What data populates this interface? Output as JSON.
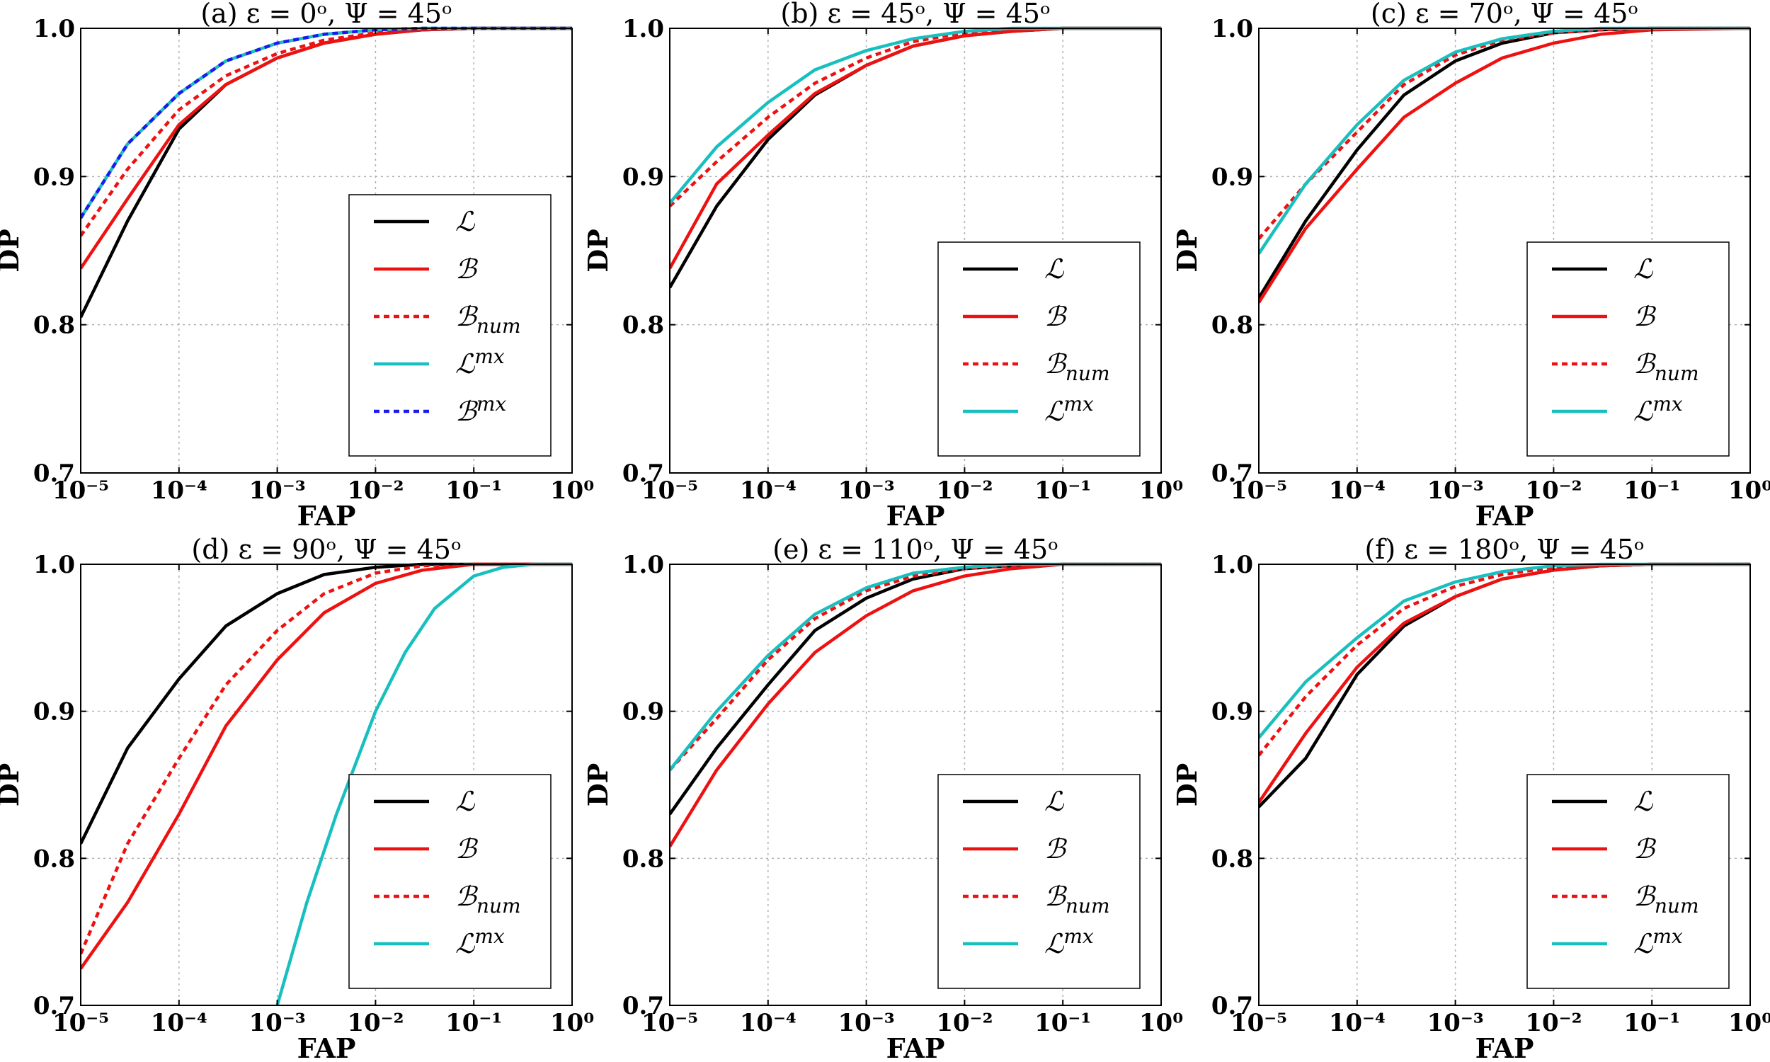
{
  "colors": {
    "L": "#000000",
    "B": "#ee1111",
    "B_num": "#ee1111",
    "L_mx": "#19bfbf",
    "B_mx": "#1a1aee"
  },
  "chart_data": [
    {
      "type": "line",
      "panel": "(a)",
      "title": "(a) ε = 0ᵒ, Ψ = 45ᵒ",
      "xlabel": "FAP",
      "ylabel": "DP",
      "xscale": "log",
      "xlim": [
        1e-05,
        1
      ],
      "ylim": [
        0.7,
        1.0
      ],
      "xticks": [
        "10⁻⁵",
        "10⁻⁴",
        "10⁻³",
        "10⁻²",
        "10⁻¹",
        "10⁰"
      ],
      "yticks": [
        "0.7",
        "0.8",
        "0.9",
        "1.0"
      ],
      "grid": true,
      "legend_position": "lower-right",
      "series": [
        {
          "name": "ℒ",
          "style": "solid",
          "color_key": "L",
          "x": [
            1e-05,
            3e-05,
            0.0001,
            0.0003,
            0.001,
            0.003,
            0.01,
            0.03,
            0.1,
            1
          ],
          "y": [
            0.805,
            0.87,
            0.932,
            0.962,
            0.98,
            0.99,
            0.996,
            0.999,
            1.0,
            1.0
          ]
        },
        {
          "name": "ℬ",
          "style": "solid",
          "color_key": "B",
          "x": [
            1e-05,
            3e-05,
            0.0001,
            0.0003,
            0.001,
            0.003,
            0.01,
            0.03,
            0.1,
            1
          ],
          "y": [
            0.838,
            0.885,
            0.935,
            0.962,
            0.98,
            0.99,
            0.996,
            0.999,
            1.0,
            1.0
          ]
        },
        {
          "name": "ℬnum",
          "style": "dashed",
          "color_key": "B_num",
          "x": [
            1e-05,
            3e-05,
            0.0001,
            0.0003,
            0.001,
            0.003,
            0.01,
            0.03,
            0.1,
            1
          ],
          "y": [
            0.86,
            0.905,
            0.945,
            0.968,
            0.983,
            0.992,
            0.997,
            0.999,
            1.0,
            1.0
          ]
        },
        {
          "name": "ℒmx",
          "style": "solid",
          "color_key": "L_mx",
          "x": [
            1e-05,
            3e-05,
            0.0001,
            0.0003,
            0.001,
            0.003,
            0.01,
            0.03,
            0.1,
            1
          ],
          "y": [
            0.872,
            0.922,
            0.956,
            0.978,
            0.99,
            0.996,
            0.999,
            1.0,
            1.0,
            1.0
          ]
        },
        {
          "name": "ℬmx",
          "style": "dashed",
          "color_key": "B_mx",
          "x": [
            1e-05,
            3e-05,
            0.0001,
            0.0003,
            0.001,
            0.003,
            0.01,
            0.03,
            0.1,
            1
          ],
          "y": [
            0.872,
            0.922,
            0.956,
            0.978,
            0.99,
            0.996,
            0.999,
            1.0,
            1.0,
            1.0
          ]
        }
      ]
    },
    {
      "type": "line",
      "panel": "(b)",
      "title": "(b) ε = 45ᵒ, Ψ = 45ᵒ",
      "xlabel": "FAP",
      "ylabel": "DP",
      "xscale": "log",
      "xlim": [
        1e-05,
        1
      ],
      "ylim": [
        0.7,
        1.0
      ],
      "xticks": [
        "10⁻⁵",
        "10⁻⁴",
        "10⁻³",
        "10⁻²",
        "10⁻¹",
        "10⁰"
      ],
      "yticks": [
        "0.7",
        "0.8",
        "0.9",
        "1.0"
      ],
      "grid": true,
      "legend_position": "lower-right",
      "series": [
        {
          "name": "ℒ",
          "style": "solid",
          "color_key": "L",
          "x": [
            1e-05,
            3e-05,
            0.0001,
            0.0003,
            0.001,
            0.003,
            0.01,
            0.03,
            0.1,
            1
          ],
          "y": [
            0.825,
            0.88,
            0.925,
            0.955,
            0.975,
            0.988,
            0.995,
            0.998,
            1.0,
            1.0
          ]
        },
        {
          "name": "ℬ",
          "style": "solid",
          "color_key": "B",
          "x": [
            1e-05,
            3e-05,
            0.0001,
            0.0003,
            0.001,
            0.003,
            0.01,
            0.03,
            0.1,
            1
          ],
          "y": [
            0.838,
            0.895,
            0.928,
            0.956,
            0.975,
            0.988,
            0.995,
            0.998,
            1.0,
            1.0
          ]
        },
        {
          "name": "ℬnum",
          "style": "dashed",
          "color_key": "B_num",
          "x": [
            1e-05,
            3e-05,
            0.0001,
            0.0003,
            0.001,
            0.003,
            0.01,
            0.03,
            0.1,
            1
          ],
          "y": [
            0.88,
            0.91,
            0.94,
            0.963,
            0.98,
            0.991,
            0.997,
            0.999,
            1.0,
            1.0
          ]
        },
        {
          "name": "ℒmx",
          "style": "solid",
          "color_key": "L_mx",
          "x": [
            1e-05,
            3e-05,
            0.0001,
            0.0003,
            0.001,
            0.003,
            0.01,
            0.03,
            0.1,
            1
          ],
          "y": [
            0.882,
            0.92,
            0.95,
            0.972,
            0.985,
            0.993,
            0.998,
            1.0,
            1.0,
            1.0
          ]
        }
      ]
    },
    {
      "type": "line",
      "panel": "(c)",
      "title": "(c) ε = 70ᵒ, Ψ = 45ᵒ",
      "xlabel": "FAP",
      "ylabel": "DP",
      "xscale": "log",
      "xlim": [
        1e-05,
        1
      ],
      "ylim": [
        0.7,
        1.0
      ],
      "xticks": [
        "10⁻⁵",
        "10⁻⁴",
        "10⁻³",
        "10⁻²",
        "10⁻¹",
        "10⁰"
      ],
      "yticks": [
        "0.7",
        "0.8",
        "0.9",
        "1.0"
      ],
      "grid": true,
      "legend_position": "lower-right",
      "series": [
        {
          "name": "ℒ",
          "style": "solid",
          "color_key": "L",
          "x": [
            1e-05,
            3e-05,
            0.0001,
            0.0003,
            0.001,
            0.003,
            0.01,
            0.03,
            0.1,
            1
          ],
          "y": [
            0.818,
            0.87,
            0.918,
            0.955,
            0.978,
            0.99,
            0.997,
            0.999,
            1.0,
            1.0
          ]
        },
        {
          "name": "ℬ",
          "style": "solid",
          "color_key": "B",
          "x": [
            1e-05,
            3e-05,
            0.0001,
            0.0003,
            0.001,
            0.003,
            0.01,
            0.03,
            0.1,
            1
          ],
          "y": [
            0.815,
            0.865,
            0.905,
            0.94,
            0.963,
            0.98,
            0.99,
            0.996,
            0.999,
            1.0
          ]
        },
        {
          "name": "ℬnum",
          "style": "dashed",
          "color_key": "B_num",
          "x": [
            1e-05,
            3e-05,
            0.0001,
            0.0003,
            0.001,
            0.003,
            0.01,
            0.03,
            0.1,
            1
          ],
          "y": [
            0.858,
            0.895,
            0.93,
            0.962,
            0.982,
            0.992,
            0.997,
            0.999,
            1.0,
            1.0
          ]
        },
        {
          "name": "ℒmx",
          "style": "solid",
          "color_key": "L_mx",
          "x": [
            1e-05,
            3e-05,
            0.0001,
            0.0003,
            0.001,
            0.003,
            0.01,
            0.03,
            0.1,
            1
          ],
          "y": [
            0.848,
            0.895,
            0.935,
            0.965,
            0.984,
            0.993,
            0.998,
            1.0,
            1.0,
            1.0
          ]
        }
      ]
    },
    {
      "type": "line",
      "panel": "(d)",
      "title": "(d) ε = 90ᵒ, Ψ = 45ᵒ",
      "xlabel": "FAP",
      "ylabel": "DP",
      "xscale": "log",
      "xlim": [
        1e-05,
        1
      ],
      "ylim": [
        0.7,
        1.0
      ],
      "xticks": [
        "10⁻⁵",
        "10⁻⁴",
        "10⁻³",
        "10⁻²",
        "10⁻¹",
        "10⁰"
      ],
      "yticks": [
        "0.7",
        "0.8",
        "0.9",
        "1.0"
      ],
      "grid": true,
      "legend_position": "lower-right",
      "series": [
        {
          "name": "ℒ",
          "style": "solid",
          "color_key": "L",
          "x": [
            1e-05,
            3e-05,
            0.0001,
            0.0003,
            0.001,
            0.003,
            0.01,
            0.03,
            0.1,
            1
          ],
          "y": [
            0.81,
            0.875,
            0.922,
            0.958,
            0.98,
            0.993,
            0.998,
            1.0,
            1.0,
            1.0
          ]
        },
        {
          "name": "ℬ",
          "style": "solid",
          "color_key": "B",
          "x": [
            1e-05,
            3e-05,
            0.0001,
            0.0003,
            0.001,
            0.003,
            0.01,
            0.03,
            0.1,
            1
          ],
          "y": [
            0.725,
            0.77,
            0.83,
            0.89,
            0.935,
            0.967,
            0.987,
            0.996,
            1.0,
            1.0
          ]
        },
        {
          "name": "ℬnum",
          "style": "dashed",
          "color_key": "B_num",
          "x": [
            1e-05,
            3e-05,
            0.0001,
            0.0003,
            0.001,
            0.003,
            0.01,
            0.03,
            0.1,
            1
          ],
          "y": [
            0.735,
            0.81,
            0.868,
            0.918,
            0.955,
            0.98,
            0.994,
            0.999,
            1.0,
            1.0
          ]
        },
        {
          "name": "ℒmx",
          "style": "solid",
          "color_key": "L_mx",
          "x": [
            0.001,
            0.002,
            0.004,
            0.01,
            0.02,
            0.04,
            0.1,
            0.2,
            0.4,
            1
          ],
          "y": [
            0.7,
            0.77,
            0.83,
            0.9,
            0.94,
            0.97,
            0.992,
            0.998,
            1.0,
            1.0
          ]
        }
      ]
    },
    {
      "type": "line",
      "panel": "(e)",
      "title": "(e) ε = 110ᵒ, Ψ = 45ᵒ",
      "xlabel": "FAP",
      "ylabel": "DP",
      "xscale": "log",
      "xlim": [
        1e-05,
        1
      ],
      "ylim": [
        0.7,
        1.0
      ],
      "xticks": [
        "10⁻⁵",
        "10⁻⁴",
        "10⁻³",
        "10⁻²",
        "10⁻¹",
        "10⁰"
      ],
      "yticks": [
        "0.7",
        "0.8",
        "0.9",
        "1.0"
      ],
      "grid": true,
      "legend_position": "lower-right",
      "series": [
        {
          "name": "ℒ",
          "style": "solid",
          "color_key": "L",
          "x": [
            1e-05,
            3e-05,
            0.0001,
            0.0003,
            0.001,
            0.003,
            0.01,
            0.03,
            0.1,
            1
          ],
          "y": [
            0.83,
            0.875,
            0.918,
            0.955,
            0.977,
            0.99,
            0.997,
            0.999,
            1.0,
            1.0
          ]
        },
        {
          "name": "ℬ",
          "style": "solid",
          "color_key": "B",
          "x": [
            1e-05,
            3e-05,
            0.0001,
            0.0003,
            0.001,
            0.003,
            0.01,
            0.03,
            0.1,
            1
          ],
          "y": [
            0.808,
            0.86,
            0.905,
            0.94,
            0.965,
            0.982,
            0.992,
            0.997,
            1.0,
            1.0
          ]
        },
        {
          "name": "ℬnum",
          "style": "dashed",
          "color_key": "B_num",
          "x": [
            1e-05,
            3e-05,
            0.0001,
            0.0003,
            0.001,
            0.003,
            0.01,
            0.03,
            0.1,
            1
          ],
          "y": [
            0.86,
            0.895,
            0.935,
            0.963,
            0.982,
            0.992,
            0.997,
            0.999,
            1.0,
            1.0
          ]
        },
        {
          "name": "ℒmx",
          "style": "solid",
          "color_key": "L_mx",
          "x": [
            1e-05,
            3e-05,
            0.0001,
            0.0003,
            0.001,
            0.003,
            0.01,
            0.03,
            0.1,
            1
          ],
          "y": [
            0.86,
            0.9,
            0.938,
            0.966,
            0.984,
            0.994,
            0.998,
            1.0,
            1.0,
            1.0
          ]
        }
      ]
    },
    {
      "type": "line",
      "panel": "(f)",
      "title": "(f) ε = 180ᵒ, Ψ = 45ᵒ",
      "xlabel": "FAP",
      "ylabel": "DP",
      "xscale": "log",
      "xlim": [
        1e-05,
        1
      ],
      "ylim": [
        0.7,
        1.0
      ],
      "xticks": [
        "10⁻⁵",
        "10⁻⁴",
        "10⁻³",
        "10⁻²",
        "10⁻¹",
        "10⁰"
      ],
      "yticks": [
        "0.7",
        "0.8",
        "0.9",
        "1.0"
      ],
      "grid": true,
      "legend_position": "lower-right",
      "series": [
        {
          "name": "ℒ",
          "style": "solid",
          "color_key": "L",
          "x": [
            1e-05,
            3e-05,
            0.0001,
            0.0003,
            0.001,
            0.003,
            0.01,
            0.03,
            0.1,
            1
          ],
          "y": [
            0.835,
            0.868,
            0.925,
            0.958,
            0.978,
            0.99,
            0.996,
            0.999,
            1.0,
            1.0
          ]
        },
        {
          "name": "ℬ",
          "style": "solid",
          "color_key": "B",
          "x": [
            1e-05,
            3e-05,
            0.0001,
            0.0003,
            0.001,
            0.003,
            0.01,
            0.03,
            0.1,
            1
          ],
          "y": [
            0.838,
            0.885,
            0.93,
            0.96,
            0.978,
            0.99,
            0.996,
            0.999,
            1.0,
            1.0
          ]
        },
        {
          "name": "ℬnum",
          "style": "dashed",
          "color_key": "B_num",
          "x": [
            1e-05,
            3e-05,
            0.0001,
            0.0003,
            0.001,
            0.003,
            0.01,
            0.03,
            0.1,
            1
          ],
          "y": [
            0.87,
            0.91,
            0.945,
            0.97,
            0.985,
            0.993,
            0.998,
            0.999,
            1.0,
            1.0
          ]
        },
        {
          "name": "ℒmx",
          "style": "solid",
          "color_key": "L_mx",
          "x": [
            1e-05,
            3e-05,
            0.0001,
            0.0003,
            0.001,
            0.003,
            0.01,
            0.03,
            0.1,
            1
          ],
          "y": [
            0.882,
            0.92,
            0.95,
            0.975,
            0.988,
            0.995,
            0.999,
            1.0,
            1.0,
            1.0
          ]
        }
      ]
    }
  ]
}
